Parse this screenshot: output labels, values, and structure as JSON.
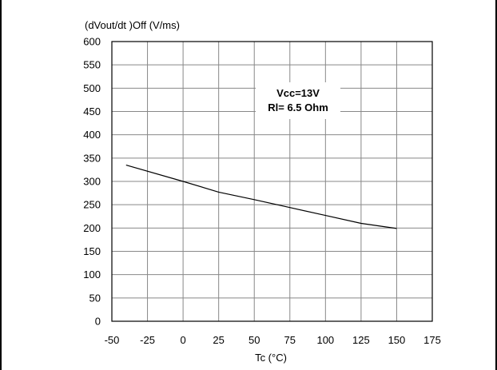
{
  "chart_data": {
    "type": "line",
    "ylabel": "(dVout/dt )Off (V/ms)",
    "xlabel": "Tc (°C)",
    "xlim": [
      -50,
      175
    ],
    "ylim": [
      0,
      600
    ],
    "x_ticks": [
      "-50",
      "-25",
      "0",
      "25",
      "50",
      "75",
      "100",
      "125",
      "150",
      "175"
    ],
    "y_ticks": [
      "0",
      "50",
      "100",
      "150",
      "200",
      "250",
      "300",
      "350",
      "400",
      "450",
      "500",
      "550",
      "600"
    ],
    "grid": true,
    "annotation": [
      "Vcc=13V",
      "Rl= 6.5 Ohm"
    ],
    "series": [
      {
        "x": [
          -40,
          0,
          25,
          50,
          75,
          100,
          125,
          150
        ],
        "y": [
          335,
          300,
          277,
          261,
          244,
          227,
          210,
          199
        ]
      }
    ]
  }
}
